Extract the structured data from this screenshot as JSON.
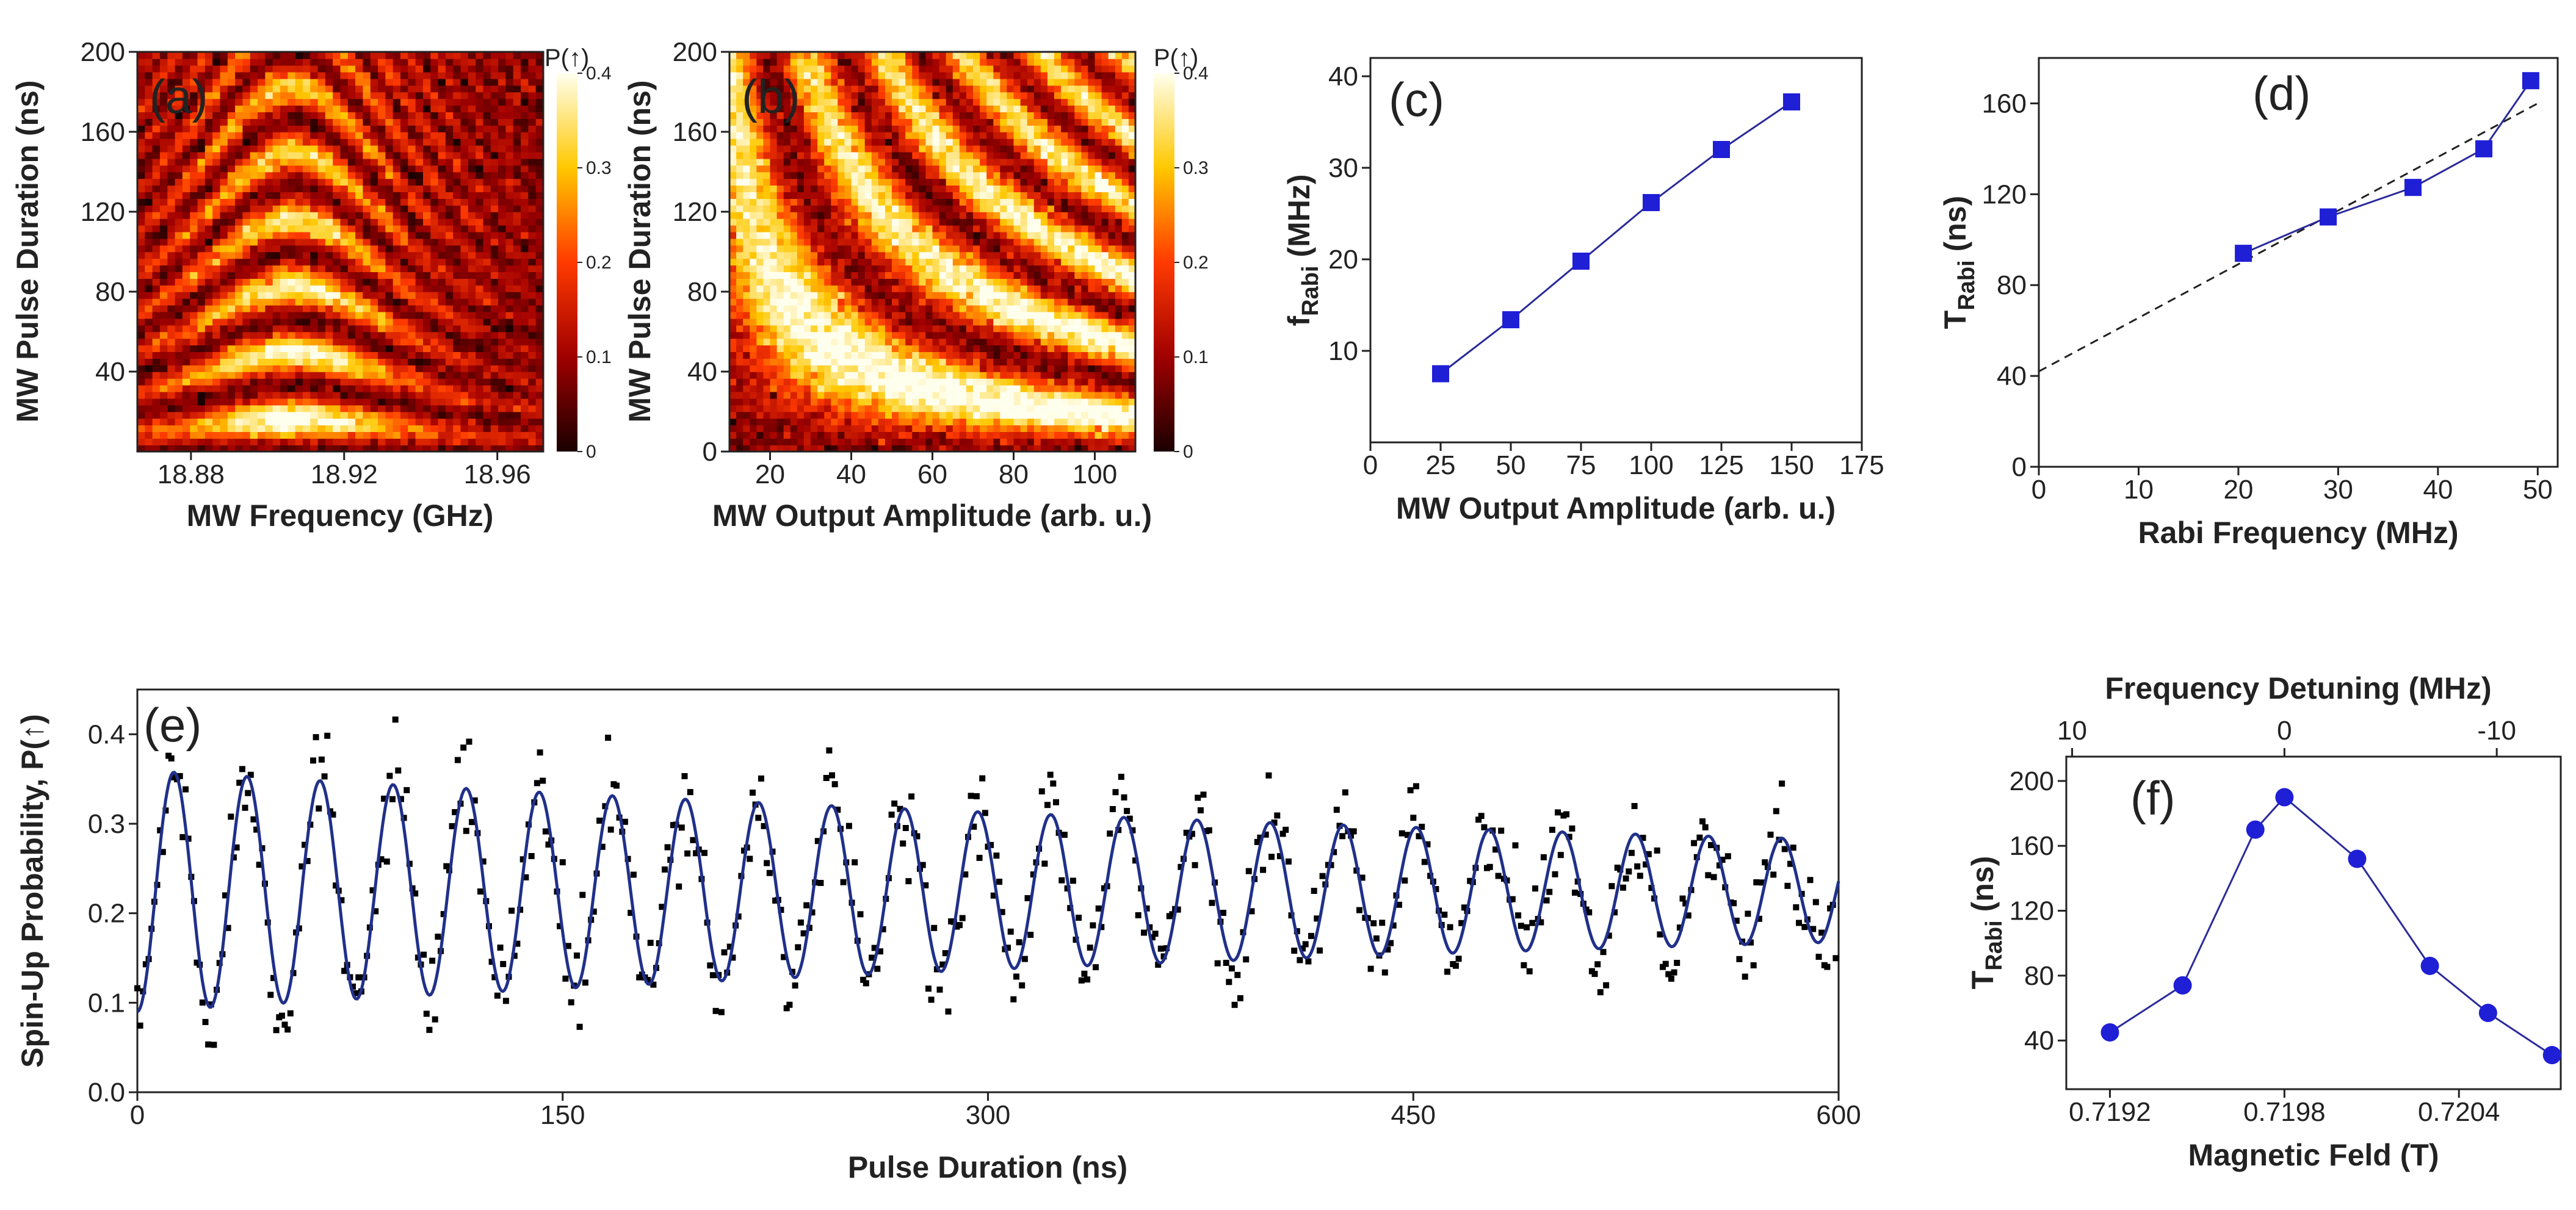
{
  "figure": {
    "panel_a": {
      "tag": "(a)",
      "xlabel": "MW Frequency (GHz)",
      "ylabel": "MW Pulse Duration (ns)",
      "colorbar_title": "P(↑)"
    },
    "panel_b": {
      "tag": "(b)",
      "xlabel": "MW Output Amplitude (arb. u.)",
      "ylabel": "MW Pulse Duration (ns)",
      "colorbar_title": "P(↑)"
    },
    "panel_c": {
      "tag": "(c)",
      "ylabel_main": "f",
      "ylabel_sub": "Rabi"
    },
    "panel_d": {
      "tag": "(d)",
      "ylabel_main": "T",
      "ylabel_sub": "Rabi",
      "ylabel_unit": " (ns)"
    },
    "panel_e": {
      "tag": "(e)"
    },
    "panel_f": {
      "tag": "(f)",
      "ylabel_main": "T",
      "ylabel_sub": "Rabi",
      "ylabel_unit": " (ns)"
    }
  },
  "chart_data": [
    {
      "id": "a",
      "type": "heatmap",
      "title": "(a)",
      "xlabel": "MW Frequency (GHz)",
      "ylabel": "MW Pulse Duration (ns)",
      "xlim": [
        18.866,
        18.972
      ],
      "ylim": [
        0,
        200
      ],
      "xticks": [
        18.88,
        18.92,
        18.96
      ],
      "xticklabels": [
        "18.88",
        "18.92",
        "18.96"
      ],
      "yticks": [
        40,
        80,
        120,
        160,
        200
      ],
      "yticklabels": [
        "40",
        "80",
        "120",
        "160",
        "200"
      ],
      "colorbar": {
        "title": "P(↑)",
        "min": 0,
        "max": 0.4,
        "ticks": [
          0,
          0.1,
          0.2,
          0.3,
          0.4
        ],
        "ticklabels": [
          "0",
          "0.1",
          "0.2",
          "0.3",
          "0.4"
        ]
      },
      "model": {
        "f0_GHz": 18.9065,
        "rabi_MHz": 30,
        "contrast": 0.38,
        "baseline": 0.06
      }
    },
    {
      "id": "b",
      "type": "heatmap",
      "title": "(b)",
      "xlabel": "MW Output Amplitude (arb. u.)",
      "ylabel": "MW Pulse Duration (ns)",
      "xlim": [
        10,
        110
      ],
      "ylim": [
        0,
        200
      ],
      "xticks": [
        20,
        40,
        60,
        80,
        100
      ],
      "xticklabels": [
        "20",
        "40",
        "60",
        "80",
        "100"
      ],
      "yticks": [
        0,
        40,
        80,
        120,
        160,
        200
      ],
      "yticklabels": [
        "0",
        "40",
        "80",
        "120",
        "160",
        "200"
      ],
      "colorbar": {
        "title": "P(↑)",
        "min": 0,
        "max": 0.4,
        "ticks": [
          0,
          0.1,
          0.2,
          0.3,
          0.4
        ],
        "ticklabels": [
          "0",
          "0.1",
          "0.2",
          "0.3",
          "0.4"
        ]
      },
      "model": {
        "rabi_MHz_per_amp": 0.26,
        "contrast": 0.36,
        "baseline": 0.08
      }
    },
    {
      "id": "c",
      "type": "scatter",
      "title": "(c)",
      "xlabel": "MW Output Amplitude (arb. u.)",
      "ylabel": "fRabi (MHz)",
      "xlim": [
        0,
        175
      ],
      "ylim": [
        0,
        42
      ],
      "xticks": [
        0,
        25,
        50,
        75,
        100,
        125,
        150,
        175
      ],
      "xticklabels": [
        "0",
        "25",
        "50",
        "75",
        "100",
        "125",
        "150",
        "175"
      ],
      "yticks": [
        10,
        20,
        30,
        40
      ],
      "yticklabels": [
        "10",
        "20",
        "30",
        "40"
      ],
      "series": [
        {
          "name": "fRabi",
          "x": [
            25,
            50,
            75,
            100,
            125,
            150
          ],
          "y": [
            7.5,
            13.4,
            19.8,
            26.2,
            32.0,
            37.2
          ],
          "color": "#1f1fd6"
        }
      ]
    },
    {
      "id": "d",
      "type": "scatter",
      "title": "(d)",
      "xlabel": "Rabi Frequency (MHz)",
      "ylabel": "TRabi (ns)",
      "xlim": [
        0,
        52
      ],
      "ylim": [
        0,
        180
      ],
      "xticks": [
        0,
        10,
        20,
        30,
        40,
        50
      ],
      "xticklabels": [
        "0",
        "10",
        "20",
        "30",
        "40",
        "50"
      ],
      "yticks": [
        0,
        40,
        80,
        120,
        160
      ],
      "yticklabels": [
        "0",
        "40",
        "80",
        "120",
        "160"
      ],
      "series": [
        {
          "name": "TRabi",
          "x": [
            20.5,
            29.0,
            37.5,
            44.6,
            49.3
          ],
          "y": [
            94,
            110,
            123,
            140,
            170
          ],
          "color": "#1f1fd6"
        }
      ],
      "fit_line": {
        "x": [
          0,
          50
        ],
        "y": [
          42,
          160
        ],
        "style": "dashed"
      }
    },
    {
      "id": "e",
      "type": "scatter",
      "title": "(e)",
      "xlabel": "Pulse Duration (ns)",
      "ylabel": "Spin-Up Probability, P(↑)",
      "xlim": [
        0,
        600
      ],
      "ylim": [
        0,
        0.45
      ],
      "xticks": [
        0,
        150,
        300,
        450,
        600
      ],
      "xticklabels": [
        "0",
        "150",
        "300",
        "450",
        "600"
      ],
      "yticks": [
        0.0,
        0.1,
        0.2,
        0.3,
        0.4
      ],
      "yticklabels": [
        "0.0",
        "0.1",
        "0.2",
        "0.3",
        "0.4"
      ],
      "fit": {
        "name": "damped cosine fit",
        "baseline": 0.225,
        "amp0": 0.135,
        "decay_ns": 700,
        "freq_MHz": 38.8,
        "color": "#20308a"
      },
      "points": {
        "count": 600,
        "step_ns": 1,
        "scatter_sd": 0.028,
        "color": "#000000"
      }
    },
    {
      "id": "f",
      "type": "line",
      "title": "(f)",
      "xlabel": "Magnetic Feld (T)",
      "ylabel": "TRabi (ns)",
      "x2label": "Frequency Detuning (MHz)",
      "xlim": [
        0.71905,
        0.72075
      ],
      "ylim": [
        10,
        215
      ],
      "xticks": [
        0.7192,
        0.7198,
        0.7204
      ],
      "xticklabels": [
        "0.7192",
        "0.7198",
        "0.7204"
      ],
      "x2ticks": [
        0.71907,
        0.7198,
        0.72053
      ],
      "x2ticklabels": [
        "10",
        "0",
        "-10"
      ],
      "yticks": [
        40,
        80,
        120,
        160,
        200
      ],
      "yticklabels": [
        "40",
        "80",
        "120",
        "160",
        "200"
      ],
      "series": [
        {
          "name": "TRabi",
          "x": [
            0.7192,
            0.71945,
            0.7197,
            0.7198,
            0.72005,
            0.7203,
            0.7205,
            0.72072
          ],
          "y": [
            45,
            74,
            170,
            190,
            152,
            86,
            57,
            31
          ],
          "color": "#1f1fd6"
        }
      ]
    }
  ]
}
